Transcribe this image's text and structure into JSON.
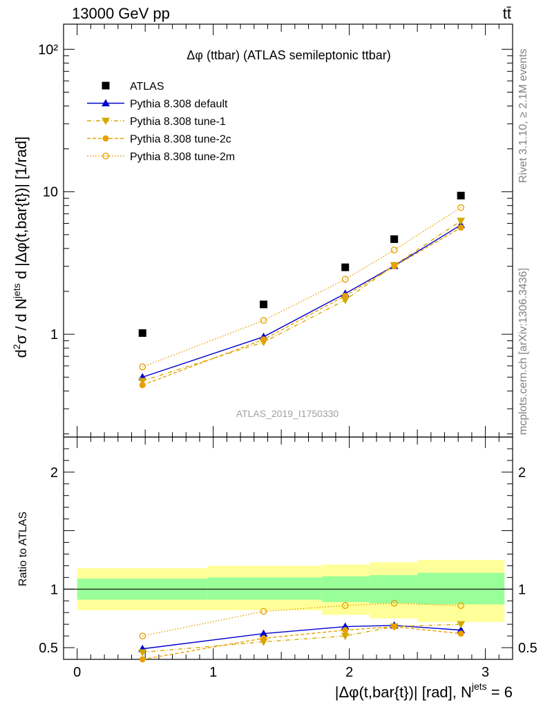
{
  "header": {
    "energy_label": "13000 GeV pp",
    "process_label": "tt̄"
  },
  "side_notes": {
    "rivet": "Rivet 3.1.10, ≥ 2.1M events",
    "source": "mcplots.cern.ch [arXiv:1306.3436]"
  },
  "analysis_id": "ATLAS_2019_I1750330",
  "colors": {
    "data": "#000000",
    "default": "#0000cc",
    "tune_orange": "#e8a000",
    "tune1": "#d4a800",
    "band_inner": "#99ff99",
    "band_outer": "#ffff99"
  },
  "chart_data": [
    {
      "type": "scatter",
      "title": "Δφ (ttbar) (ATLAS semileptonic ttbar)",
      "ylabel": "d²σ / d N^jets d |Δφ(t,bar{t})| [1/rad]",
      "y_scale": "log",
      "xlim": [
        -0.1,
        3.2
      ],
      "ylim": [
        0.19,
        150
      ],
      "y_ticks": [
        {
          "value": 1,
          "label": "1"
        },
        {
          "value": 10,
          "label": "10"
        },
        {
          "value": 100,
          "label": "10²"
        }
      ],
      "legend_position": "top-left",
      "x": [
        0.48,
        1.37,
        1.97,
        2.33,
        2.82
      ],
      "series": [
        {
          "name": "ATLAS",
          "values": [
            1.02,
            1.62,
            2.95,
            4.65,
            9.4
          ],
          "marker": "square",
          "line": "none"
        },
        {
          "name": "Pythia 8.308 default",
          "values": [
            0.5,
            0.96,
            1.93,
            3.02,
            5.85
          ],
          "marker": "triangle-up",
          "line": "solid"
        },
        {
          "name": "Pythia 8.308 tune-1",
          "values": [
            0.47,
            0.88,
            1.74,
            3.05,
            6.25
          ],
          "marker": "triangle-down",
          "line": "dashdot"
        },
        {
          "name": "Pythia 8.308 tune-2c",
          "values": [
            0.44,
            0.92,
            1.86,
            3.0,
            5.6
          ],
          "marker": "circle",
          "line": "dashed"
        },
        {
          "name": "Pythia 8.308 tune-2m",
          "values": [
            0.59,
            1.25,
            2.43,
            3.9,
            7.75
          ],
          "marker": "open-circle",
          "line": "dotted"
        }
      ]
    },
    {
      "type": "line",
      "ylabel": "Ratio to ATLAS",
      "xlabel": "|Δφ(t,bar{t})| [rad], N^jets = 6",
      "xlim": [
        -0.1,
        3.2
      ],
      "ylim": [
        0.4,
        2.3
      ],
      "y_ticks": [
        {
          "value": 0.5,
          "label": "0.5"
        },
        {
          "value": 1,
          "label": "1"
        },
        {
          "value": 2,
          "label": "2"
        }
      ],
      "x_ticks": [
        {
          "value": 0,
          "label": "0"
        },
        {
          "value": 1,
          "label": "1"
        },
        {
          "value": 2,
          "label": "2"
        },
        {
          "value": 3,
          "label": "3"
        }
      ],
      "reference_line": 1,
      "bands": [
        {
          "x0": 0.0,
          "x1": 0.96,
          "inner": [
            0.91,
            1.09
          ],
          "outer": [
            0.82,
            1.18
          ]
        },
        {
          "x0": 0.96,
          "x1": 1.8,
          "inner": [
            0.91,
            1.1
          ],
          "outer": [
            0.82,
            1.2
          ]
        },
        {
          "x0": 1.8,
          "x1": 2.15,
          "inner": [
            0.89,
            1.11
          ],
          "outer": [
            0.78,
            1.21
          ]
        },
        {
          "x0": 2.15,
          "x1": 2.5,
          "inner": [
            0.88,
            1.12
          ],
          "outer": [
            0.75,
            1.23
          ]
        },
        {
          "x0": 2.5,
          "x1": 3.14,
          "inner": [
            0.87,
            1.14
          ],
          "outer": [
            0.72,
            1.25
          ]
        }
      ],
      "x": [
        0.48,
        1.37,
        1.97,
        2.33,
        2.82
      ],
      "series": [
        {
          "name": "Pythia 8.308 default",
          "values": [
            0.49,
            0.62,
            0.68,
            0.69,
            0.65
          ],
          "marker": "triangle-up",
          "line": "solid"
        },
        {
          "name": "Pythia 8.308 tune-1",
          "values": [
            0.46,
            0.55,
            0.6,
            0.68,
            0.7
          ],
          "marker": "triangle-down",
          "line": "dashdot"
        },
        {
          "name": "Pythia 8.308 tune-2c",
          "values": [
            0.4,
            0.58,
            0.65,
            0.68,
            0.62
          ],
          "marker": "circle",
          "line": "dashed"
        },
        {
          "name": "Pythia 8.308 tune-2m",
          "values": [
            0.6,
            0.81,
            0.86,
            0.88,
            0.86
          ],
          "marker": "open-circle",
          "line": "dotted"
        }
      ]
    }
  ]
}
